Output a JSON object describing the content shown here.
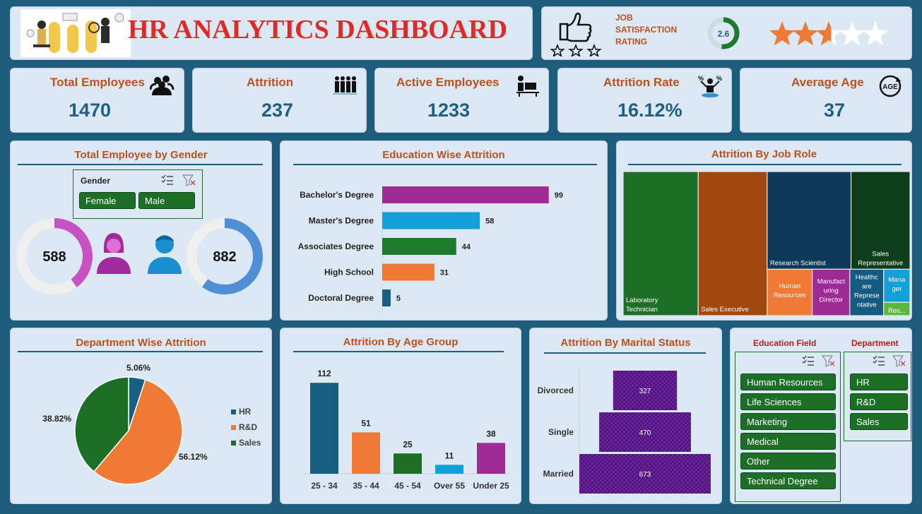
{
  "header": {
    "title": "HR ANALYTICS DASHBOARD"
  },
  "satisfaction": {
    "label_line1": "JOB",
    "label_line2": "SATISFACTION",
    "label_line3": "RATING",
    "value": "2.6",
    "rating": 2.6,
    "stars_max": 5
  },
  "kpis": [
    {
      "label": "Total Employees",
      "value": "1470",
      "icon": "people-group-icon"
    },
    {
      "label": "Attrition",
      "value": "237",
      "icon": "people-leaving-icon"
    },
    {
      "label": "Active Employees",
      "value": "1233",
      "icon": "person-at-desk-icon"
    },
    {
      "label": "Attrition Rate",
      "value": "16.12%",
      "icon": "percent-person-icon"
    },
    {
      "label": "Average Age",
      "value": "37",
      "icon": "age-icon"
    }
  ],
  "gender": {
    "title": "Total Employee by Gender",
    "slicer_title": "Gender",
    "options": [
      "Female",
      "Male"
    ],
    "female": {
      "value": "588",
      "pct": 0.4,
      "color": "#c752c2"
    },
    "male": {
      "value": "882",
      "pct": 0.6,
      "color": "#4f8fd6"
    }
  },
  "education_attrition": {
    "title": "Education Wise Attrition",
    "chart_data": {
      "type": "bar",
      "orientation": "horizontal",
      "categories": [
        "Bachelor's Degree",
        "Master's Degree",
        "Associates Degree",
        "High School",
        "Doctoral Degree"
      ],
      "values": [
        99,
        58,
        44,
        31,
        5
      ],
      "colors": [
        "#9e2a96",
        "#139fd8",
        "#1d7a2a",
        "#ee7a36",
        "#175f82"
      ],
      "xlim": [
        0,
        105
      ]
    }
  },
  "job_role": {
    "title": "Attrition By Job Role",
    "chart_data": {
      "type": "treemap",
      "categories": [
        "Laboratory Technician",
        "Sales Executive",
        "Research Scientist",
        "Sales Representative",
        "Human Resources",
        "Manufacturing Director",
        "Healthcare Representative",
        "Manager",
        "Research Director"
      ],
      "display_labels": [
        "Laboratory Technician",
        "Sales Executive",
        "Research Scientist",
        "Sales Representative",
        "Human Resources",
        "Manufact uring Director",
        "Healthc are Represe ntative",
        "Mana ger",
        "Res..."
      ],
      "values": [
        62,
        57,
        47,
        33,
        12,
        10,
        9,
        5,
        2
      ],
      "colors": [
        "#1d6f27",
        "#a0480f",
        "#0f3b5a",
        "#0e3d1c",
        "#ee7a36",
        "#9e2a96",
        "#155a80",
        "#139fd8",
        "#5cb83a"
      ]
    }
  },
  "department_attrition": {
    "title": "Department Wise Attrition",
    "chart_data": {
      "type": "pie",
      "categories": [
        "HR",
        "R&D",
        "Sales"
      ],
      "values": [
        5.06,
        56.12,
        38.82
      ],
      "labels": [
        "5.06%",
        "56.12%",
        "38.82%"
      ],
      "colors": [
        "#175f82",
        "#ee7a36",
        "#1d6f27"
      ],
      "legend": "right"
    }
  },
  "age_group": {
    "title": "Attrition By Age Group",
    "chart_data": {
      "type": "bar",
      "categories": [
        "25 - 34",
        "35 - 44",
        "45 - 54",
        "Over 55",
        "Under 25"
      ],
      "values": [
        112,
        51,
        25,
        11,
        38
      ],
      "colors": [
        "#175f82",
        "#ee7a36",
        "#1d6f27",
        "#139fd8",
        "#9e2a96"
      ],
      "ylim": [
        0,
        120
      ]
    }
  },
  "marital": {
    "title": "Attrition By Marital Status",
    "chart_data": {
      "type": "bar",
      "orientation": "horizontal",
      "style": "funnel",
      "categories": [
        "Divorced",
        "Single",
        "Married"
      ],
      "values": [
        327,
        470,
        673
      ],
      "color": "#5b1a8a"
    }
  },
  "filters": {
    "education_field": {
      "title": "Education Field",
      "options": [
        "Human Resources",
        "Life Sciences",
        "Marketing",
        "Medical",
        "Other",
        "Technical Degree"
      ]
    },
    "department": {
      "title": "Department",
      "options": [
        "HR",
        "R&D",
        "Sales"
      ]
    }
  }
}
